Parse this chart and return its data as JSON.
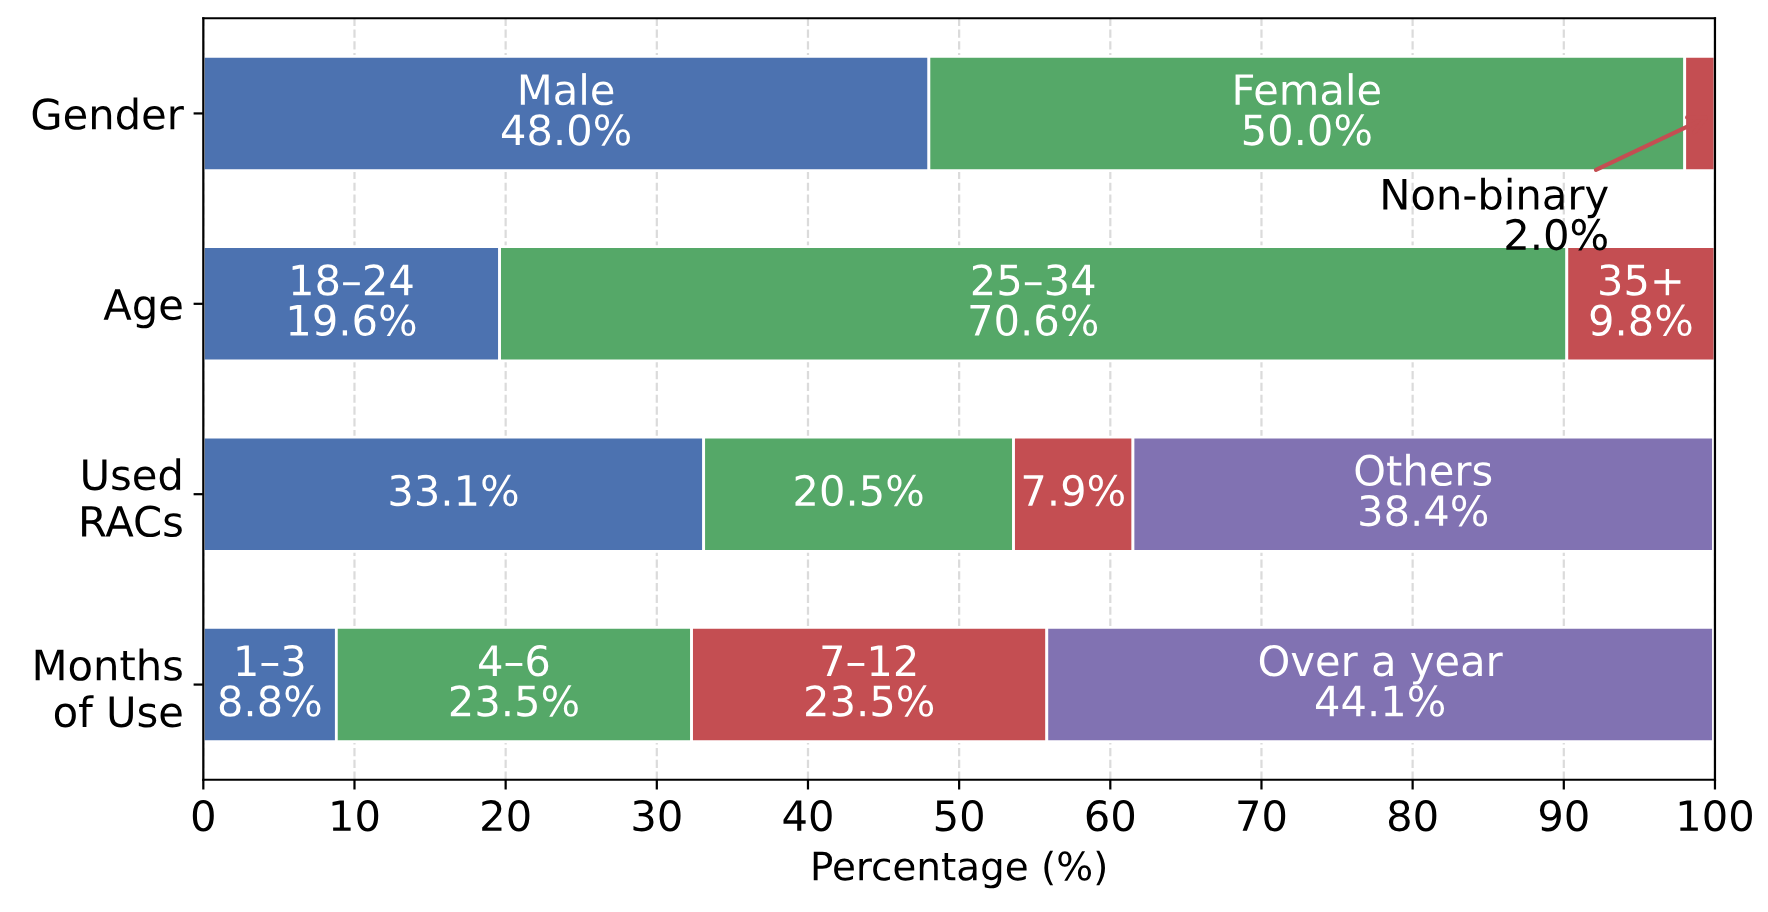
{
  "chart_data": {
    "type": "bar",
    "orientation": "horizontal",
    "stacked": true,
    "categories": [
      "Gender",
      "Age",
      "Used\nRACs",
      "Months\nof Use"
    ],
    "series": [
      {
        "color": "#4c72b0",
        "values": [
          48.0,
          19.6,
          33.1,
          8.8
        ],
        "value_labels": [
          "Male\n48.0%",
          "18–24\n19.6%",
          "33.1%",
          "1–3\n8.8%"
        ]
      },
      {
        "color": "#55a868",
        "values": [
          50.0,
          70.6,
          20.5,
          23.5
        ],
        "value_labels": [
          "Female\n50.0%",
          "25–34\n70.6%",
          "20.5%",
          "4–6\n23.5%"
        ]
      },
      {
        "color": "#c44e52",
        "values": [
          2.0,
          9.8,
          7.9,
          23.5
        ],
        "value_labels": [
          null,
          "35+\n9.8%",
          "7.9%",
          "7–12\n23.5%"
        ]
      },
      {
        "color": "#8172b2",
        "values": [
          null,
          null,
          38.4,
          44.1
        ],
        "value_labels": [
          null,
          null,
          "Others\n38.4%",
          "Over a year\n44.1%"
        ]
      }
    ],
    "xlabel": "Percentage (%)",
    "xlim": [
      0,
      100
    ],
    "xticks": [
      0,
      10,
      20,
      30,
      40,
      50,
      60,
      70,
      80,
      90,
      100
    ],
    "grid": "x",
    "annotations": [
      {
        "text": "Non-binary\n2.0%",
        "x": 100,
        "y": "Gender"
      }
    ]
  }
}
